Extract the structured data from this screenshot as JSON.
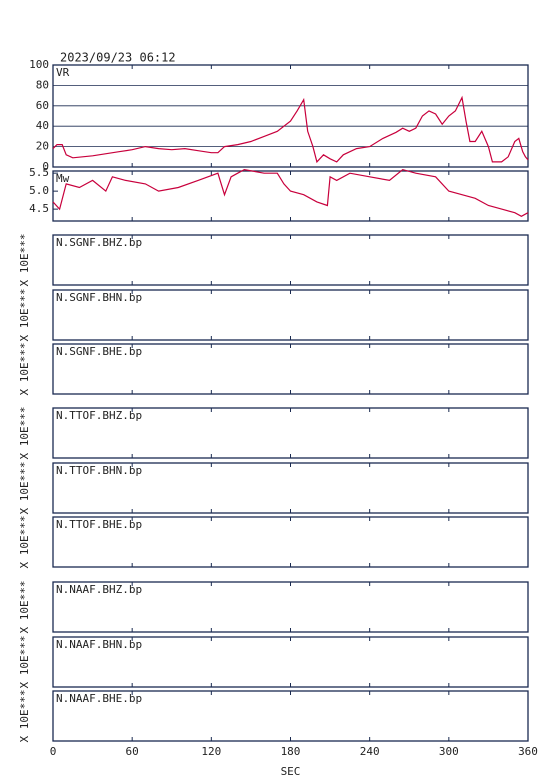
{
  "chart_data": [
    {
      "type": "line",
      "title": "2023/09/23 06:12",
      "ylabel": "VR",
      "color": "#c8003c",
      "grid": true,
      "xlim": [
        0,
        360
      ],
      "ylim": [
        0,
        100
      ],
      "yticks": [
        0,
        20,
        40,
        60,
        80,
        100
      ],
      "x": [
        0,
        3,
        7,
        10,
        15,
        30,
        50,
        60,
        70,
        80,
        90,
        100,
        110,
        120,
        125,
        130,
        140,
        150,
        160,
        170,
        180,
        185,
        190,
        193,
        197,
        200,
        205,
        210,
        215,
        220,
        230,
        240,
        250,
        260,
        265,
        270,
        275,
        280,
        285,
        290,
        295,
        300,
        305,
        310,
        313,
        316,
        320,
        325,
        330,
        333,
        340,
        345,
        350,
        353,
        356,
        358,
        360
      ],
      "values": [
        18,
        22,
        22,
        12,
        9,
        11,
        15,
        17,
        20,
        18,
        17,
        18,
        16,
        14,
        14,
        20,
        22,
        25,
        30,
        35,
        45,
        55,
        66,
        35,
        20,
        5,
        12,
        8,
        5,
        12,
        18,
        20,
        28,
        34,
        38,
        35,
        38,
        50,
        55,
        52,
        42,
        50,
        55,
        68,
        45,
        25,
        25,
        35,
        20,
        5,
        5,
        10,
        25,
        28,
        15,
        10,
        7
      ]
    },
    {
      "type": "line",
      "ylabel": "Mw",
      "color": "#c8003c",
      "xlim": [
        0,
        360
      ],
      "ylim": [
        4.17,
        5.56
      ],
      "yticks": [
        4.5,
        {
          "value": 5,
          "label": "5.0"
        },
        5.5
      ],
      "x": [
        0,
        5,
        10,
        20,
        30,
        40,
        45,
        55,
        70,
        80,
        95,
        110,
        125,
        130,
        135,
        140,
        145,
        160,
        170,
        175,
        180,
        190,
        200,
        208,
        210,
        215,
        225,
        240,
        255,
        265,
        275,
        290,
        300,
        310,
        320,
        330,
        340,
        350,
        355,
        360
      ],
      "values": [
        4.7,
        4.5,
        5.2,
        5.1,
        5.3,
        5.0,
        5.4,
        5.3,
        5.2,
        5.0,
        5.1,
        5.3,
        5.5,
        4.9,
        5.4,
        5.5,
        5.6,
        5.5,
        5.5,
        5.2,
        5.0,
        4.9,
        4.7,
        4.6,
        5.4,
        5.3,
        5.5,
        5.4,
        5.3,
        5.6,
        5.5,
        5.4,
        5.0,
        4.9,
        4.8,
        4.6,
        4.5,
        4.4,
        4.3,
        4.4
      ]
    },
    {
      "type": "blank",
      "title": "N.SGNF.BHZ.bp",
      "ylabel": "X 10E***"
    },
    {
      "type": "blank",
      "title": "N.SGNF.BHN.bp",
      "ylabel": "X 10E***"
    },
    {
      "type": "blank",
      "title": "N.SGNF.BHE.bp",
      "ylabel": "X 10E***"
    },
    {
      "type": "blank",
      "title": "N.TTOF.BHZ.bp",
      "ylabel": "X 10E***"
    },
    {
      "type": "blank",
      "title": "N.TTOF.BHN.bp",
      "ylabel": "X 10E***"
    },
    {
      "type": "blank",
      "title": "N.TTOF.BHE.bp",
      "ylabel": "X 10E***"
    },
    {
      "type": "blank",
      "title": "N.NAAF.BHZ.bp",
      "ylabel": "X 10E***"
    },
    {
      "type": "blank",
      "title": "N.NAAF.BHN.bp",
      "ylabel": "X 10E***"
    },
    {
      "type": "blank",
      "title": "N.NAAF.BHE.bp",
      "ylabel": "X 10E***",
      "xlabel": "SEC",
      "xlim": [
        0,
        360
      ],
      "xticks": [
        0,
        60,
        120,
        180,
        240,
        300,
        360
      ]
    }
  ]
}
